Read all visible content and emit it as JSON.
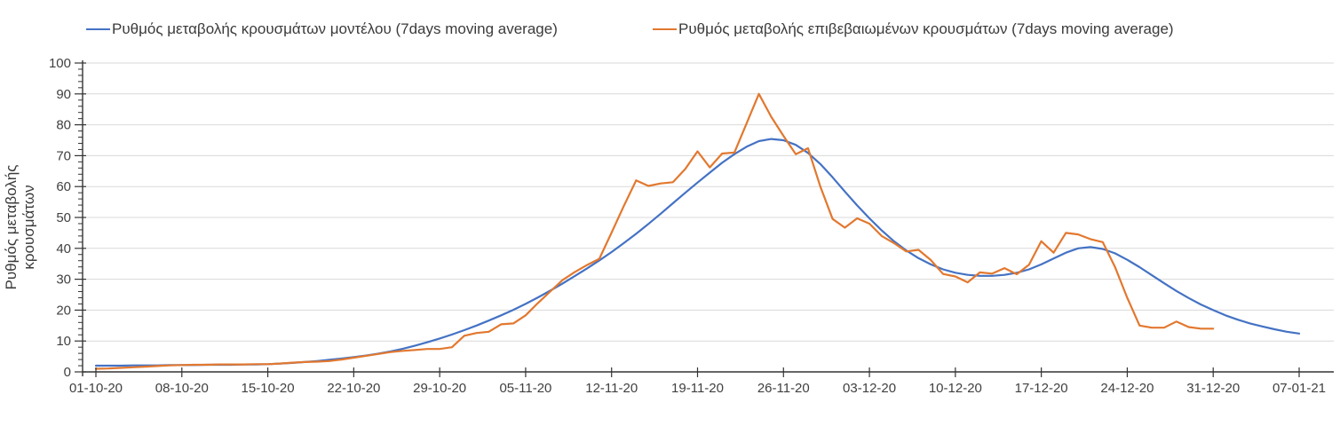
{
  "chart_data": {
    "type": "line",
    "title": "",
    "xlabel": "",
    "ylabel": "Ρυθμός μεταβολής κρουσμάτων",
    "ylim": [
      0,
      100
    ],
    "y_ticks": [
      0,
      10,
      20,
      30,
      40,
      50,
      60,
      70,
      80,
      90,
      100
    ],
    "y_minor_tick_step": 2,
    "grid": "horizontal-only",
    "legend_position": "top",
    "x_start_date": "01-10-20",
    "x_tick_labels": [
      "01-10-20",
      "08-10-20",
      "15-10-20",
      "22-10-20",
      "29-10-20",
      "05-11-20",
      "12-11-20",
      "19-11-20",
      "26-11-20",
      "03-12-20",
      "10-12-20",
      "17-12-20",
      "24-12-20",
      "31-12-20",
      "07-01-21"
    ],
    "x_tick_days": [
      0,
      7,
      14,
      21,
      28,
      35,
      42,
      49,
      56,
      63,
      70,
      77,
      84,
      91,
      98
    ],
    "series": [
      {
        "name": "Ρυθμός μεταβολής κρουσμάτων μοντέλου (7days moving average)",
        "color": "#4472C4",
        "start_day": 0,
        "values": [
          2.0,
          2.0,
          2.0,
          2.1,
          2.1,
          2.1,
          2.2,
          2.2,
          2.2,
          2.3,
          2.3,
          2.3,
          2.4,
          2.4,
          2.5,
          2.7,
          2.9,
          3.2,
          3.5,
          3.9,
          4.3,
          4.8,
          5.3,
          5.9,
          6.6,
          7.5,
          8.5,
          9.6,
          10.8,
          12.1,
          13.5,
          15.0,
          16.6,
          18.3,
          20.1,
          22.0,
          24.1,
          26.3,
          28.6,
          31.0,
          33.5,
          36.1,
          38.8,
          41.7,
          44.7,
          47.9,
          51.2,
          54.6,
          58.0,
          61.3,
          64.5,
          67.7,
          70.5,
          72.9,
          74.7,
          75.4,
          75.0,
          73.5,
          70.9,
          67.3,
          63.0,
          58.4,
          53.9,
          49.7,
          45.8,
          42.3,
          39.3,
          36.8,
          34.8,
          33.2,
          32.1,
          31.4,
          31.1,
          31.1,
          31.4,
          32.1,
          33.2,
          34.8,
          36.7,
          38.6,
          40.0,
          40.4,
          39.8,
          38.4,
          36.3,
          33.9,
          31.3,
          28.7,
          26.2,
          23.9,
          21.8,
          20.0,
          18.3,
          16.9,
          15.7,
          14.7,
          13.8,
          13.0,
          12.4
        ]
      },
      {
        "name": "Ρυθμός μεταβολής επιβεβαιωμένων κρουσμάτων (7days moving average)",
        "color": "#E2782F",
        "start_day": 0,
        "values": [
          1.0,
          1.1,
          1.3,
          1.5,
          1.7,
          1.9,
          2.1,
          2.2,
          2.3,
          2.3,
          2.4,
          2.4,
          2.4,
          2.5,
          2.5,
          2.7,
          3.0,
          3.2,
          3.3,
          3.5,
          4.0,
          4.6,
          5.2,
          5.8,
          6.4,
          6.8,
          7.1,
          7.4,
          7.4,
          8.0,
          11.7,
          12.6,
          13.0,
          15.4,
          15.7,
          18.3,
          22.3,
          26.0,
          29.7,
          32.3,
          34.6,
          36.6,
          45.1,
          53.7,
          62.0,
          60.2,
          61.0,
          61.4,
          65.7,
          71.4,
          66.2,
          70.7,
          71.0,
          80.5,
          90.0,
          82.6,
          76.4,
          70.5,
          72.4,
          60.0,
          49.5,
          46.7,
          49.7,
          48.0,
          44.0,
          41.7,
          39.0,
          39.5,
          36.2,
          31.7,
          30.9,
          29.0,
          32.2,
          31.8,
          33.6,
          31.6,
          34.7,
          42.3,
          38.6,
          45.0,
          44.5,
          43.0,
          42.0,
          34.0,
          24.0,
          15.0,
          14.3,
          14.3,
          16.3,
          14.5,
          14.0,
          14.0
        ]
      }
    ]
  }
}
